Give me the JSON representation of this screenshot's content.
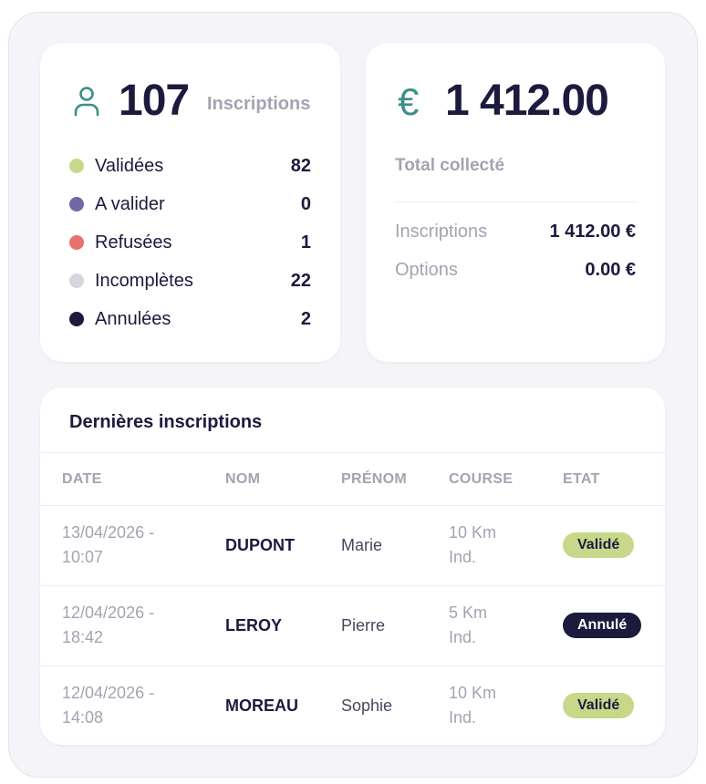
{
  "inscriptions": {
    "total": "107",
    "label": "Inscriptions",
    "icon": "user-icon",
    "statuses": [
      {
        "label": "Validées",
        "count": "82",
        "color": "#c8d88a"
      },
      {
        "label": "A valider",
        "count": "0",
        "color": "#6f6aa6"
      },
      {
        "label": "Refusées",
        "count": "1",
        "color": "#e8716e"
      },
      {
        "label": "Incomplètes",
        "count": "22",
        "color": "#d6d7de"
      },
      {
        "label": "Annulées",
        "count": "2",
        "color": "#1c1a3d"
      }
    ]
  },
  "money": {
    "icon": "euro-icon",
    "symbol": "€",
    "total": "1 412.00",
    "caption": "Total collecté",
    "rows": [
      {
        "label": "Inscriptions",
        "value": "1 412.00 €"
      },
      {
        "label": "Options",
        "value": "0.00 €"
      }
    ]
  },
  "table": {
    "title": "Dernières inscriptions",
    "headers": [
      "DATE",
      "NOM",
      "PRÉNOM",
      "COURSE",
      "ETAT"
    ],
    "rows": [
      {
        "date_line1": "13/04/2026 -",
        "date_line2": "10:07",
        "nom": "DUPONT",
        "prenom": "Marie",
        "course_line1": "10 Km",
        "course_line2": "Ind.",
        "etat": "Validé"
      },
      {
        "date_line1": "12/04/2026 -",
        "date_line2": "18:42",
        "nom": "LEROY",
        "prenom": "Pierre",
        "course_line1": "5 Km",
        "course_line2": "Ind.",
        "etat": "Annulé"
      },
      {
        "date_line1": "12/04/2026 -",
        "date_line2": "14:08",
        "nom": "MOREAU",
        "prenom": "Sophie",
        "course_line1": "10 Km",
        "course_line2": "Ind.",
        "etat": "Validé"
      }
    ]
  },
  "colors": {
    "accent": "#3e8e8b",
    "dark": "#1c1a3d",
    "muted": "#a2a4b2",
    "valid_badge": "#c8d88a"
  }
}
